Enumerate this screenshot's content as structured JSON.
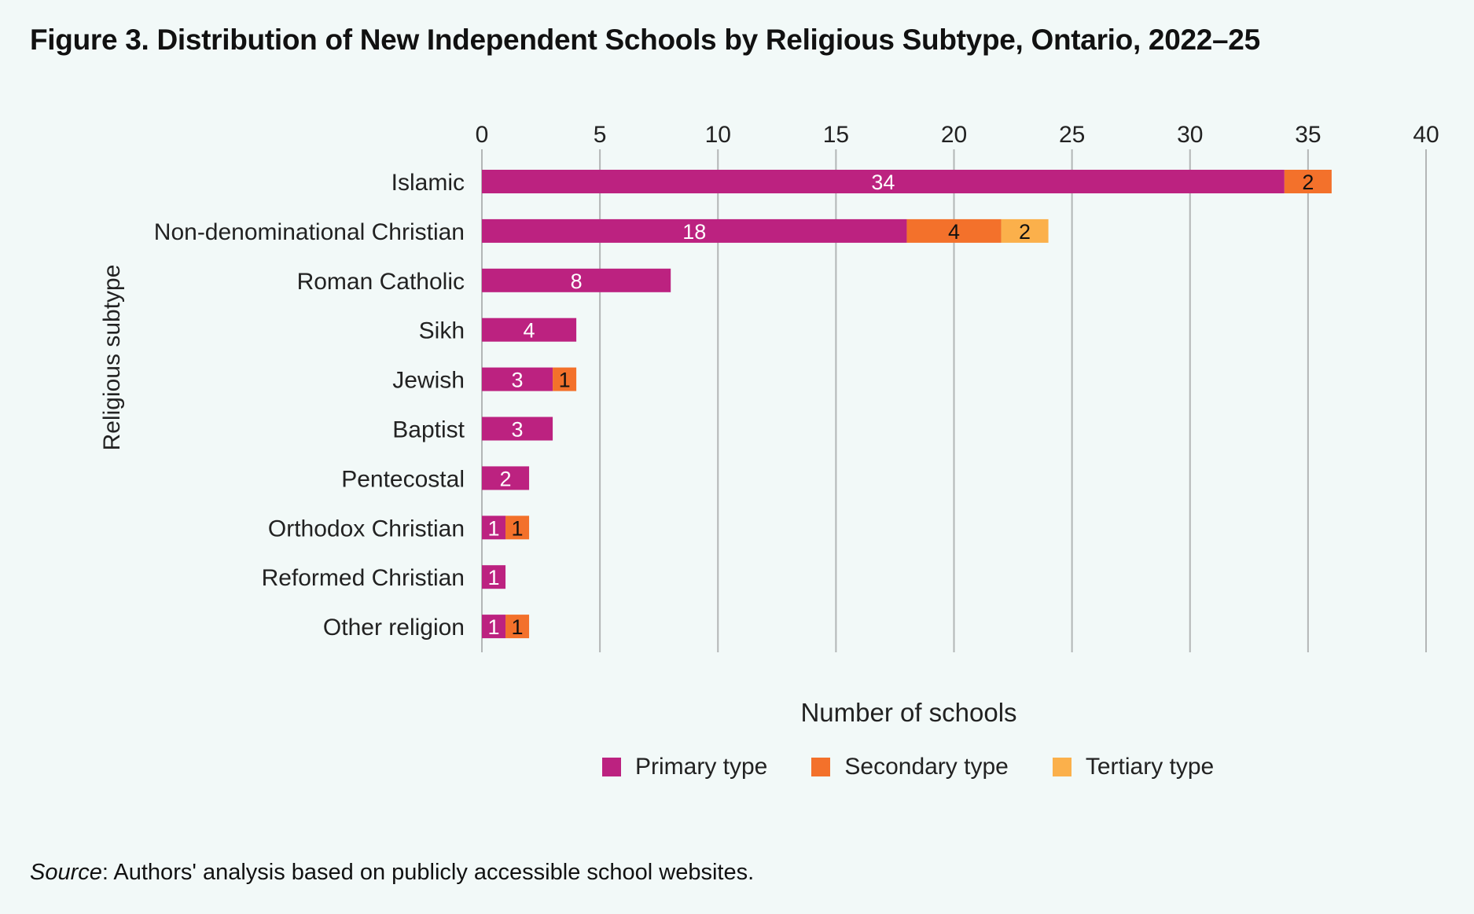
{
  "figure": {
    "title": "Figure 3. Distribution of New Independent Schools by Religious Subtype, Ontario, 2022–25",
    "source_lead": "Source",
    "source_text": ": Authors' analysis based on publicly accessible school websites."
  },
  "chart_data": {
    "type": "bar",
    "orientation": "horizontal",
    "stacked": true,
    "title": "Figure 3. Distribution of New Independent Schools by Religious Subtype, Ontario, 2022–25",
    "xlabel": "Number of schools",
    "ylabel": "Religious subtype",
    "xlim": [
      0,
      40
    ],
    "xticks": [
      0,
      5,
      10,
      15,
      20,
      25,
      30,
      35,
      40
    ],
    "x_axis_position": "top",
    "grid": "vertical",
    "legend_position": "bottom",
    "categories": [
      "Islamic",
      "Non-denominational Christian",
      "Roman Catholic",
      "Sikh",
      "Jewish",
      "Baptist",
      "Pentecostal",
      "Orthodox Christian",
      "Reformed Christian",
      "Other religion"
    ],
    "series": [
      {
        "name": "Primary type",
        "color": "#bc2280",
        "label_color": "#ffffff",
        "values": [
          34,
          18,
          8,
          4,
          3,
          3,
          2,
          1,
          1,
          1
        ]
      },
      {
        "name": "Secondary type",
        "color": "#f3712b",
        "label_color": "#111111",
        "values": [
          2,
          4,
          0,
          0,
          1,
          0,
          0,
          1,
          0,
          1
        ]
      },
      {
        "name": "Tertiary type",
        "color": "#fbb04b",
        "label_color": "#111111",
        "values": [
          0,
          2,
          0,
          0,
          0,
          0,
          0,
          0,
          0,
          0
        ]
      }
    ],
    "gridline_color": "#b3b6b6"
  }
}
